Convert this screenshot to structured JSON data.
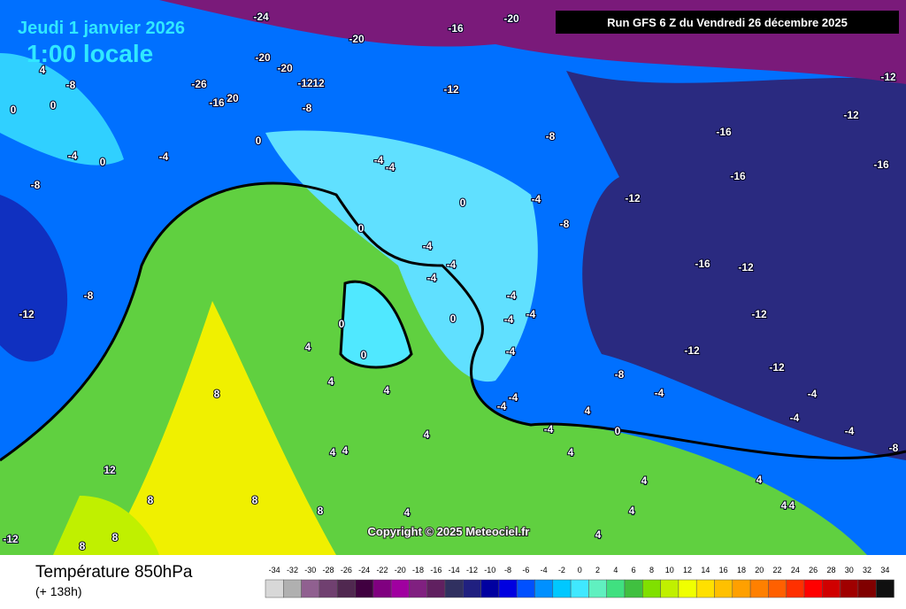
{
  "header": {
    "date": "Jeudi 1 janvier 2026",
    "time": "1:00 locale",
    "run": "Run GFS 6 Z du Vendredi 26 décembre 2025",
    "copyright": "Copyright © 2025 Meteociel.fr"
  },
  "footer": {
    "title": "Température 850hPa",
    "lead": "(+ 138h)"
  },
  "legend": {
    "ticks": [
      -34,
      -32,
      -30,
      -28,
      -26,
      -24,
      -22,
      -20,
      -18,
      -16,
      -14,
      -12,
      -10,
      -8,
      -6,
      -4,
      -2,
      0,
      2,
      4,
      6,
      8,
      10,
      12,
      14,
      16,
      18,
      20,
      22,
      24,
      26,
      28,
      30,
      32,
      34
    ],
    "colors": [
      "#d8d8d8",
      "#b0b0b0",
      "#906090",
      "#704070",
      "#502850",
      "#400040",
      "#800080",
      "#a000a0",
      "#802080",
      "#602060",
      "#303060",
      "#202080",
      "#0000a0",
      "#0000e0",
      "#0050ff",
      "#0090ff",
      "#00c8ff",
      "#40e8ff",
      "#60f0c0",
      "#40e080",
      "#40c040",
      "#80e000",
      "#c0f000",
      "#f0ff00",
      "#ffe000",
      "#ffc000",
      "#ffa000",
      "#ff8000",
      "#ff6000",
      "#ff3000",
      "#ff0000",
      "#d00000",
      "#a00000",
      "#800000",
      "#101010"
    ]
  },
  "map": {
    "labels": [
      "-24",
      "-20",
      "-16",
      "-20",
      "-20",
      "-20",
      "-26",
      "-16",
      "20",
      "-12",
      "12",
      "-8",
      "-12",
      "-8",
      "0",
      "-4",
      "0",
      "-4",
      "-4",
      "0",
      "-4",
      "-8",
      "-12",
      "-16",
      "-16",
      "-16",
      "-12",
      "-12",
      "-16",
      "-12",
      "-12",
      "-12",
      "-12",
      "-8",
      "-4",
      "-4",
      "-4",
      "-4",
      "-8",
      "0",
      "-4",
      "-4",
      "-4",
      "-4",
      "0",
      "-4",
      "-4",
      "-4",
      "-4",
      "-4",
      "-4",
      "4",
      "0",
      "4",
      "0",
      "0",
      "4",
      "4",
      "4",
      "4",
      "4",
      "4",
      "8",
      "12",
      "8",
      "8",
      "8",
      "4",
      "4",
      "4",
      "4",
      "4",
      "4",
      "4",
      "-8",
      "-8",
      "-12",
      "-12",
      "8",
      "8",
      "0",
      "0",
      "4",
      "-8",
      "-4"
    ]
  }
}
